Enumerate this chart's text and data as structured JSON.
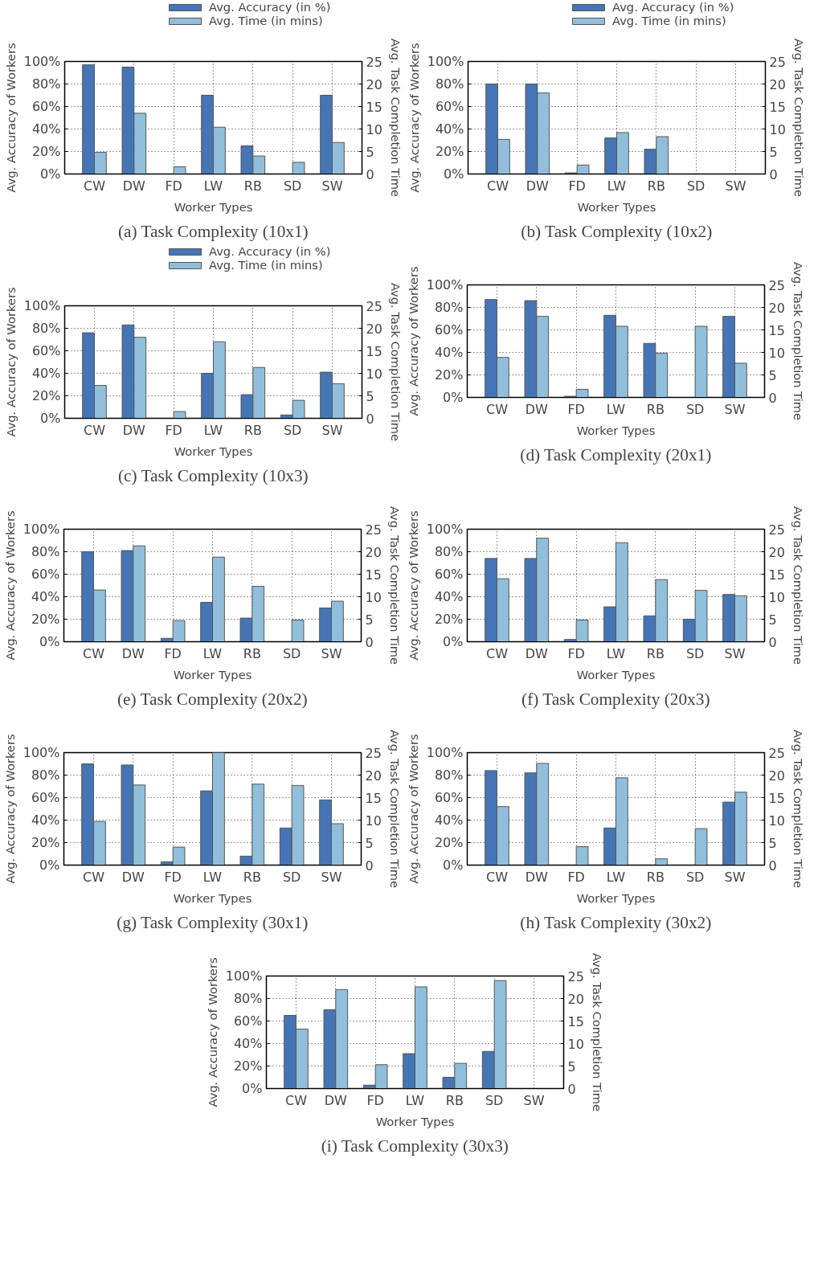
{
  "chart_data": [
    {
      "type": "bar",
      "title": "(a) Task Complexity (10x1)",
      "xlabel": "Worker Types",
      "ylabel": "Avg. Accuracy of Workers",
      "y2label": "Avg. Task Completion Time",
      "categories": [
        "CW",
        "DW",
        "FD",
        "LW",
        "RB",
        "SD",
        "SW"
      ],
      "legend": "top right",
      "grid": true,
      "ylim": [
        0,
        100
      ],
      "yticks": [
        {
          "value": 0,
          "label": "0%"
        },
        {
          "value": 20,
          "label": "20%"
        },
        {
          "value": 40,
          "label": "40%"
        },
        {
          "value": 60,
          "label": "60%"
        },
        {
          "value": 80,
          "label": "80%"
        },
        {
          "value": 100,
          "label": "100%"
        }
      ],
      "y2lim": [
        0,
        25
      ],
      "y2ticks": [
        0,
        5,
        10,
        15,
        20,
        25
      ],
      "series": [
        {
          "name": "Avg. Accuracy (in %)",
          "color": "#4575b4",
          "values": [
            97,
            95,
            0,
            70,
            25,
            0,
            70
          ]
        },
        {
          "name": "Avg. Time (in mins)",
          "color": "#91bfdb",
          "axis": "y2",
          "values": [
            4.8,
            13.5,
            1.6,
            10.4,
            4,
            2.6,
            7
          ]
        }
      ]
    },
    {
      "type": "bar",
      "title": "(b) Task Complexity (10x2)",
      "xlabel": "Worker Types",
      "ylabel": "Avg. Accuracy of Workers",
      "y2label": "Avg. Task Completion Time",
      "categories": [
        "CW",
        "DW",
        "FD",
        "LW",
        "RB",
        "SD",
        "SW"
      ],
      "legend": "top right",
      "grid": true,
      "ylim": [
        0,
        100
      ],
      "yticks": [
        {
          "value": 0,
          "label": "0%"
        },
        {
          "value": 20,
          "label": "20%"
        },
        {
          "value": 40,
          "label": "40%"
        },
        {
          "value": 60,
          "label": "60%"
        },
        {
          "value": 80,
          "label": "80%"
        },
        {
          "value": 100,
          "label": "100%"
        }
      ],
      "y2lim": [
        0,
        25
      ],
      "y2ticks": [
        0,
        5,
        10,
        15,
        20,
        25
      ],
      "series": [
        {
          "name": "Avg. Accuracy (in %)",
          "color": "#4575b4",
          "values": [
            80,
            80,
            1,
            32,
            22,
            0,
            0
          ]
        },
        {
          "name": "Avg. Time (in mins)",
          "color": "#91bfdb",
          "axis": "y2",
          "values": [
            7.7,
            18,
            2,
            9.2,
            8.3,
            0,
            0
          ]
        }
      ]
    },
    {
      "type": "bar",
      "title": "(c) Task Complexity (10x3)",
      "xlabel": "Worker Types",
      "ylabel": "Avg. Accuracy of Workers",
      "y2label": "Avg. Task Completion Time",
      "categories": [
        "CW",
        "DW",
        "FD",
        "LW",
        "RB",
        "SD",
        "SW"
      ],
      "legend": "top right",
      "grid": true,
      "ylim": [
        0,
        100
      ],
      "yticks": [
        {
          "value": 0,
          "label": "0%"
        },
        {
          "value": 20,
          "label": "20%"
        },
        {
          "value": 40,
          "label": "40%"
        },
        {
          "value": 60,
          "label": "60%"
        },
        {
          "value": 80,
          "label": "80%"
        },
        {
          "value": 100,
          "label": "100%"
        }
      ],
      "y2lim": [
        0,
        25
      ],
      "y2ticks": [
        0,
        5,
        10,
        15,
        20,
        25
      ],
      "series": [
        {
          "name": "Avg. Accuracy (in %)",
          "color": "#4575b4",
          "values": [
            76,
            83,
            0,
            40,
            21,
            3,
            41
          ]
        },
        {
          "name": "Avg. Time (in mins)",
          "color": "#91bfdb",
          "axis": "y2",
          "values": [
            7.3,
            18,
            1.5,
            17,
            11.3,
            4,
            7.7
          ]
        }
      ]
    },
    {
      "type": "bar",
      "title": "(d) Task Complexity (20x1)",
      "xlabel": "Worker Types",
      "ylabel": "Avg. Accuracy of Workers",
      "y2label": "Avg. Task Completion Time",
      "categories": [
        "CW",
        "DW",
        "FD",
        "LW",
        "RB",
        "SD",
        "SW"
      ],
      "grid": true,
      "ylim": [
        0,
        100
      ],
      "yticks": [
        {
          "value": 0,
          "label": "0%"
        },
        {
          "value": 20,
          "label": "20%"
        },
        {
          "value": 40,
          "label": "40%"
        },
        {
          "value": 60,
          "label": "60%"
        },
        {
          "value": 80,
          "label": "80%"
        },
        {
          "value": 100,
          "label": "100%"
        }
      ],
      "y2lim": [
        0,
        25
      ],
      "y2ticks": [
        0,
        5,
        10,
        15,
        20,
        25
      ],
      "series": [
        {
          "color": "#4575b4",
          "values": [
            87,
            86,
            1,
            73,
            48,
            0,
            72
          ]
        },
        {
          "color": "#91bfdb",
          "axis": "y2",
          "values": [
            8.9,
            18,
            1.8,
            15.8,
            9.8,
            15.8,
            7.6
          ]
        }
      ]
    },
    {
      "type": "bar",
      "title": "(e) Task Complexity (20x2)",
      "xlabel": "Worker Types",
      "ylabel": "Avg. Accuracy of Workers",
      "y2label": "Avg. Task Completion Time",
      "categories": [
        "CW",
        "DW",
        "FD",
        "LW",
        "RB",
        "SD",
        "SW"
      ],
      "grid": true,
      "ylim": [
        0,
        100
      ],
      "yticks": [
        {
          "value": 0,
          "label": "0%"
        },
        {
          "value": 20,
          "label": "20%"
        },
        {
          "value": 40,
          "label": "40%"
        },
        {
          "value": 60,
          "label": "60%"
        },
        {
          "value": 80,
          "label": "80%"
        },
        {
          "value": 100,
          "label": "100%"
        }
      ],
      "y2lim": [
        0,
        25
      ],
      "y2ticks": [
        0,
        5,
        10,
        15,
        20,
        25
      ],
      "series": [
        {
          "color": "#4575b4",
          "values": [
            80,
            81,
            3,
            35,
            21,
            0,
            30
          ]
        },
        {
          "color": "#91bfdb",
          "axis": "y2",
          "values": [
            11.5,
            21.3,
            4.7,
            18.8,
            12.3,
            4.8,
            9
          ]
        }
      ]
    },
    {
      "type": "bar",
      "title": "(f) Task Complexity (20x3)",
      "xlabel": "Worker Types",
      "ylabel": "Avg. Accuracy of Workers",
      "y2label": "Avg. Task Completion Time",
      "categories": [
        "CW",
        "DW",
        "FD",
        "LW",
        "RB",
        "SD",
        "SW"
      ],
      "grid": true,
      "ylim": [
        0,
        100
      ],
      "yticks": [
        {
          "value": 0,
          "label": "0%"
        },
        {
          "value": 20,
          "label": "20%"
        },
        {
          "value": 40,
          "label": "40%"
        },
        {
          "value": 60,
          "label": "60%"
        },
        {
          "value": 80,
          "label": "80%"
        },
        {
          "value": 100,
          "label": "100%"
        }
      ],
      "y2lim": [
        0,
        25
      ],
      "y2ticks": [
        0,
        5,
        10,
        15,
        20,
        25
      ],
      "series": [
        {
          "color": "#4575b4",
          "values": [
            74,
            74,
            2,
            31,
            23,
            20,
            42
          ]
        },
        {
          "color": "#91bfdb",
          "axis": "y2",
          "values": [
            14,
            23,
            4.8,
            22,
            13.8,
            11.4,
            10.2
          ]
        }
      ]
    },
    {
      "type": "bar",
      "title": "(g) Task Complexity (30x1)",
      "xlabel": "Worker Types",
      "ylabel": "Avg. Accuracy of Workers",
      "y2label": "Avg. Task Completion Time",
      "categories": [
        "CW",
        "DW",
        "FD",
        "LW",
        "RB",
        "SD",
        "SW"
      ],
      "grid": true,
      "ylim": [
        0,
        100
      ],
      "yticks": [
        {
          "value": 0,
          "label": "0%"
        },
        {
          "value": 20,
          "label": "20%"
        },
        {
          "value": 40,
          "label": "40%"
        },
        {
          "value": 60,
          "label": "60%"
        },
        {
          "value": 80,
          "label": "80%"
        },
        {
          "value": 100,
          "label": "100%"
        }
      ],
      "y2lim": [
        0,
        25
      ],
      "y2ticks": [
        0,
        5,
        10,
        15,
        20,
        25
      ],
      "series": [
        {
          "color": "#4575b4",
          "values": [
            90,
            89,
            3,
            66,
            8,
            33,
            58
          ]
        },
        {
          "color": "#91bfdb",
          "axis": "y2",
          "values": [
            9.7,
            17.8,
            4,
            25,
            18,
            17.7,
            9.2
          ]
        }
      ]
    },
    {
      "type": "bar",
      "title": "(h) Task Complexity (30x2)",
      "xlabel": "Worker Types",
      "ylabel": "Avg. Accuracy of Workers",
      "y2label": "Avg. Task Completion Time",
      "categories": [
        "CW",
        "DW",
        "FD",
        "LW",
        "RB",
        "SD",
        "SW"
      ],
      "grid": true,
      "ylim": [
        0,
        100
      ],
      "yticks": [
        {
          "value": 0,
          "label": "0%"
        },
        {
          "value": 20,
          "label": "20%"
        },
        {
          "value": 40,
          "label": "40%"
        },
        {
          "value": 60,
          "label": "60%"
        },
        {
          "value": 80,
          "label": "80%"
        },
        {
          "value": 100,
          "label": "100%"
        }
      ],
      "y2lim": [
        0,
        25
      ],
      "y2ticks": [
        0,
        5,
        10,
        15,
        20,
        25
      ],
      "series": [
        {
          "color": "#4575b4",
          "values": [
            84,
            82,
            0,
            33,
            0,
            0,
            56
          ]
        },
        {
          "color": "#91bfdb",
          "axis": "y2",
          "values": [
            13,
            22.6,
            4.1,
            19.4,
            1.4,
            8.1,
            16.2
          ]
        }
      ]
    },
    {
      "type": "bar",
      "title": "(i) Task Complexity (30x3)",
      "xlabel": "Worker Types",
      "ylabel": "Avg. Accuracy of Workers",
      "y2label": "Avg. Task Completion Time",
      "categories": [
        "CW",
        "DW",
        "FD",
        "LW",
        "RB",
        "SD",
        "SW"
      ],
      "grid": true,
      "ylim": [
        0,
        100
      ],
      "yticks": [
        {
          "value": 0,
          "label": "0%"
        },
        {
          "value": 20,
          "label": "20%"
        },
        {
          "value": 40,
          "label": "40%"
        },
        {
          "value": 60,
          "label": "60%"
        },
        {
          "value": 80,
          "label": "80%"
        },
        {
          "value": 100,
          "label": "100%"
        }
      ],
      "y2lim": [
        0,
        25
      ],
      "y2ticks": [
        0,
        5,
        10,
        15,
        20,
        25
      ],
      "series": [
        {
          "color": "#4575b4",
          "values": [
            65,
            70,
            3,
            31,
            10,
            33,
            0
          ]
        },
        {
          "color": "#91bfdb",
          "axis": "y2",
          "values": [
            13.2,
            22,
            5.3,
            22.6,
            5.6,
            24,
            0
          ]
        }
      ]
    }
  ]
}
